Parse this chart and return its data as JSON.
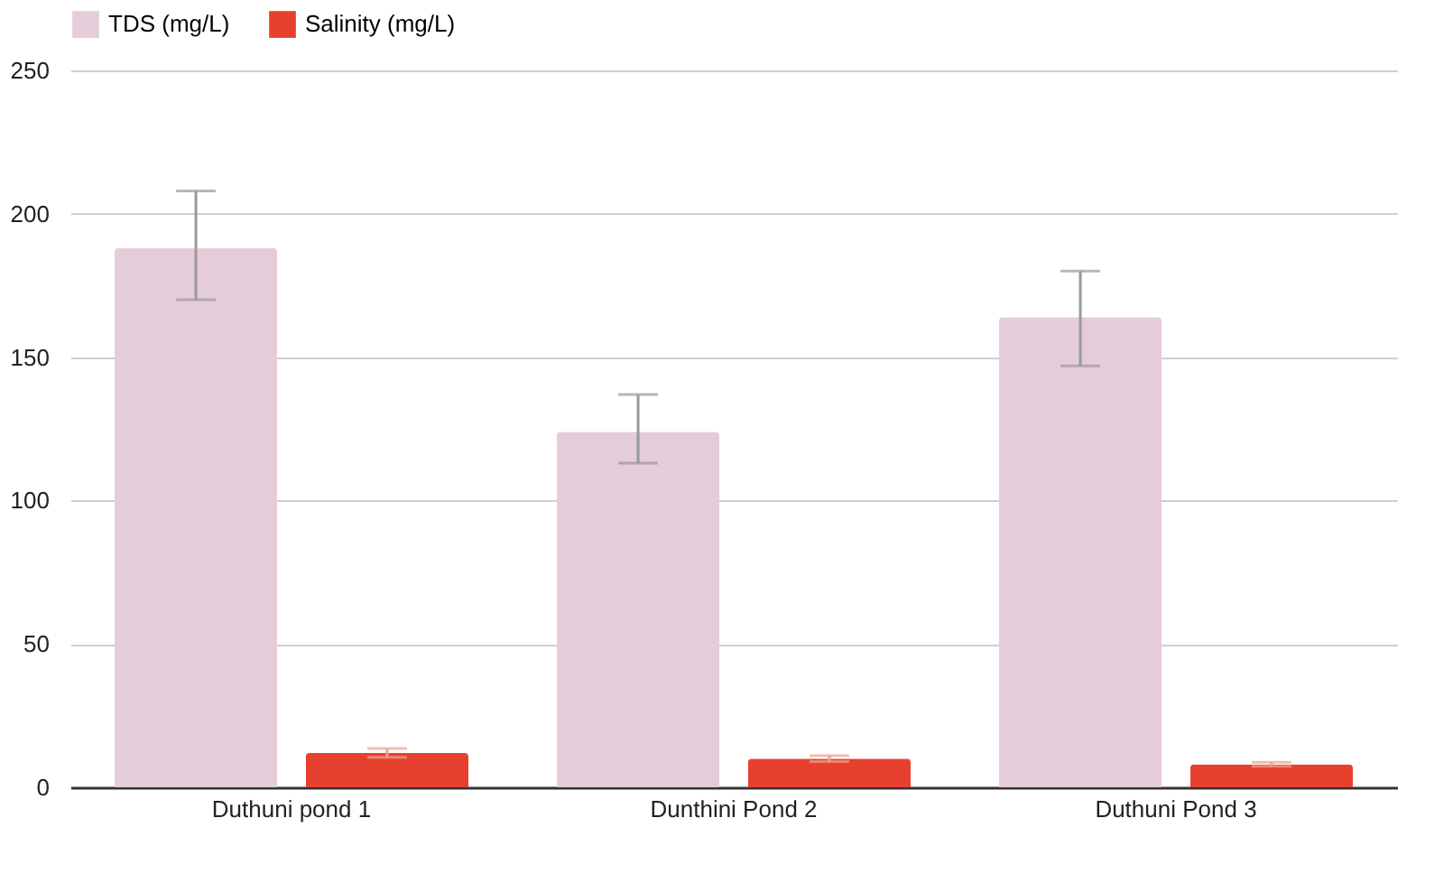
{
  "chart_data": {
    "type": "bar",
    "categories": [
      "Duthuni pond 1",
      "Dunthini Pond 2",
      "Duthuni Pond 3"
    ],
    "series": [
      {
        "name": "TDS (mg/L)",
        "color": "#e5ccda",
        "values": [
          188,
          124,
          164
        ],
        "errors": [
          [
            170,
            208
          ],
          [
            113,
            137
          ],
          [
            147,
            180
          ]
        ]
      },
      {
        "name": "Salinity (mg/L)",
        "color": "#e8402e",
        "values": [
          12,
          10,
          8
        ],
        "errors": [
          1.5,
          1,
          0.7
        ]
      }
    ],
    "ylim": [
      0,
      250
    ],
    "yticks": [
      0,
      50,
      100,
      150,
      200,
      250
    ],
    "grid": "y",
    "legend": "top"
  }
}
